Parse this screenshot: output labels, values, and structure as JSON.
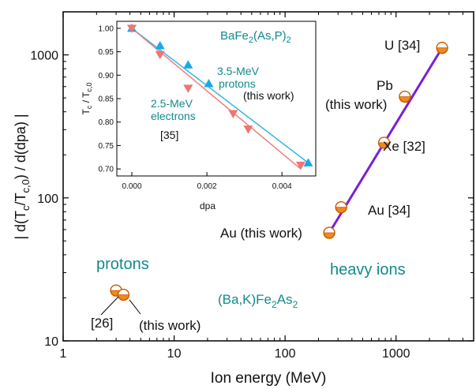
{
  "colors": {
    "teal_text": "#138a8a",
    "heavy_line": "#7a1fd6",
    "marker_orange": "#f08a18",
    "marker_orange_stroke": "#c85a00",
    "inset_line_blue": "#35b5e6",
    "inset_line_red": "#f07d7d",
    "inset_marker_blue": "#1aa9e5",
    "inset_marker_red": "#ef7472"
  },
  "chart_data": [
    {
      "type": "scatter",
      "xscale": "log",
      "yscale": "log",
      "xlim": [
        1,
        5000
      ],
      "ylim": [
        10,
        2000
      ],
      "xlabel": "Ion energy (MeV)",
      "ylabel_parts": {
        "pre": "| d(T",
        "sub1": "c",
        "mid": "/T",
        "sub2": "c,0",
        "post": ") / d(dpa) |"
      },
      "x_ticks": [
        1,
        10,
        100,
        1000
      ],
      "x_tick_labels": [
        "1",
        "10",
        "100",
        "1000"
      ],
      "y_ticks": [
        10,
        100,
        1000
      ],
      "y_tick_labels": [
        "10",
        "100",
        "1000"
      ],
      "series": [
        {
          "group": "protons",
          "points": [
            {
              "x": 3,
              "y": 22.5,
              "label": "[26]"
            },
            {
              "x": 3.5,
              "y": 21,
              "label": "(this work)"
            }
          ]
        },
        {
          "group": "heavy ions",
          "points": [
            {
              "x": 250,
              "y": 57,
              "label": "Au (this work)"
            },
            {
              "x": 320,
              "y": 86,
              "label": "Au [34]"
            },
            {
              "x": 780,
              "y": 243,
              "label": "Xe [32]"
            },
            {
              "x": 1200,
              "y": 510,
              "label_line1": "Pb",
              "label_line2": "(this work)"
            },
            {
              "x": 2600,
              "y": 1120,
              "label": "U [34]"
            }
          ],
          "fit_line": {
            "x": [
              250,
              2600
            ],
            "y": [
              57,
              1120
            ]
          }
        }
      ],
      "annotations": {
        "protons": "protons",
        "heavy_ions": "heavy ions",
        "compound_parts": {
          "pre": "(Ba,K)Fe",
          "sub1": "2",
          "mid": "As",
          "sub2": "2"
        }
      }
    },
    {
      "type": "scatter",
      "xlim": [
        -0.0004,
        0.0049
      ],
      "ylim": [
        0.685,
        1.015
      ],
      "xlabel": "dpa",
      "ylabel_parts": {
        "pre": "T",
        "sub1": "c",
        "mid": " / T",
        "sub2": "c,0"
      },
      "x_ticks": [
        0.0,
        0.002,
        0.004
      ],
      "x_tick_labels": [
        "0.000",
        "0.002",
        "0.004"
      ],
      "y_ticks": [
        0.7,
        0.75,
        0.8,
        0.85,
        0.9,
        0.95,
        1.0
      ],
      "y_tick_labels": [
        "0.70",
        "0.75",
        "0.80",
        "0.85",
        "0.90",
        "0.95",
        "1.00"
      ],
      "compound_parts": {
        "pre": "BaFe",
        "sub1": "2",
        "mid": "(As,P)",
        "sub2": "2"
      },
      "series": [
        {
          "marker": "triangle-up",
          "label_line1": "3.5-MeV",
          "label_line2": "protons",
          "label_line3": "(this work)",
          "x": [
            0.0,
            0.00075,
            0.0015,
            0.00205,
            0.0047
          ],
          "y": [
            1.0,
            0.963,
            0.922,
            0.882,
            0.713
          ],
          "fit": {
            "x": [
              0.0,
              0.0047
            ],
            "y": [
              1.0,
              0.713
            ]
          }
        },
        {
          "marker": "triangle-down",
          "label_line1": "2.5-MeV",
          "label_line2": "electrons",
          "label_line3": "[35]",
          "x": [
            0.0,
            0.00075,
            0.0015,
            0.0027,
            0.0031,
            0.0045
          ],
          "y": [
            1.0,
            0.944,
            0.872,
            0.818,
            0.785,
            0.708
          ],
          "fit": {
            "x": [
              0.0,
              0.0045
            ],
            "y": [
              1.0,
              0.7
            ]
          }
        }
      ]
    }
  ]
}
